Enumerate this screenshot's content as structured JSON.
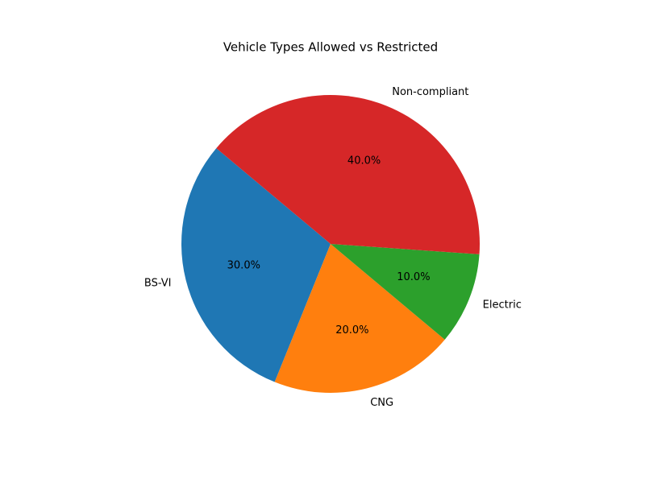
{
  "chart_data": {
    "type": "pie",
    "title": "Vehicle Types Allowed vs Restricted",
    "categories": [
      "BS-VI",
      "CNG",
      "Electric",
      "Non-compliant"
    ],
    "values": [
      30,
      20,
      10,
      40
    ],
    "value_labels": [
      "30.0%",
      "20.0%",
      "10.0%",
      "40.0%"
    ],
    "colors": [
      "#1f77b4",
      "#ff7f0e",
      "#2ca02c",
      "#d62728"
    ]
  }
}
